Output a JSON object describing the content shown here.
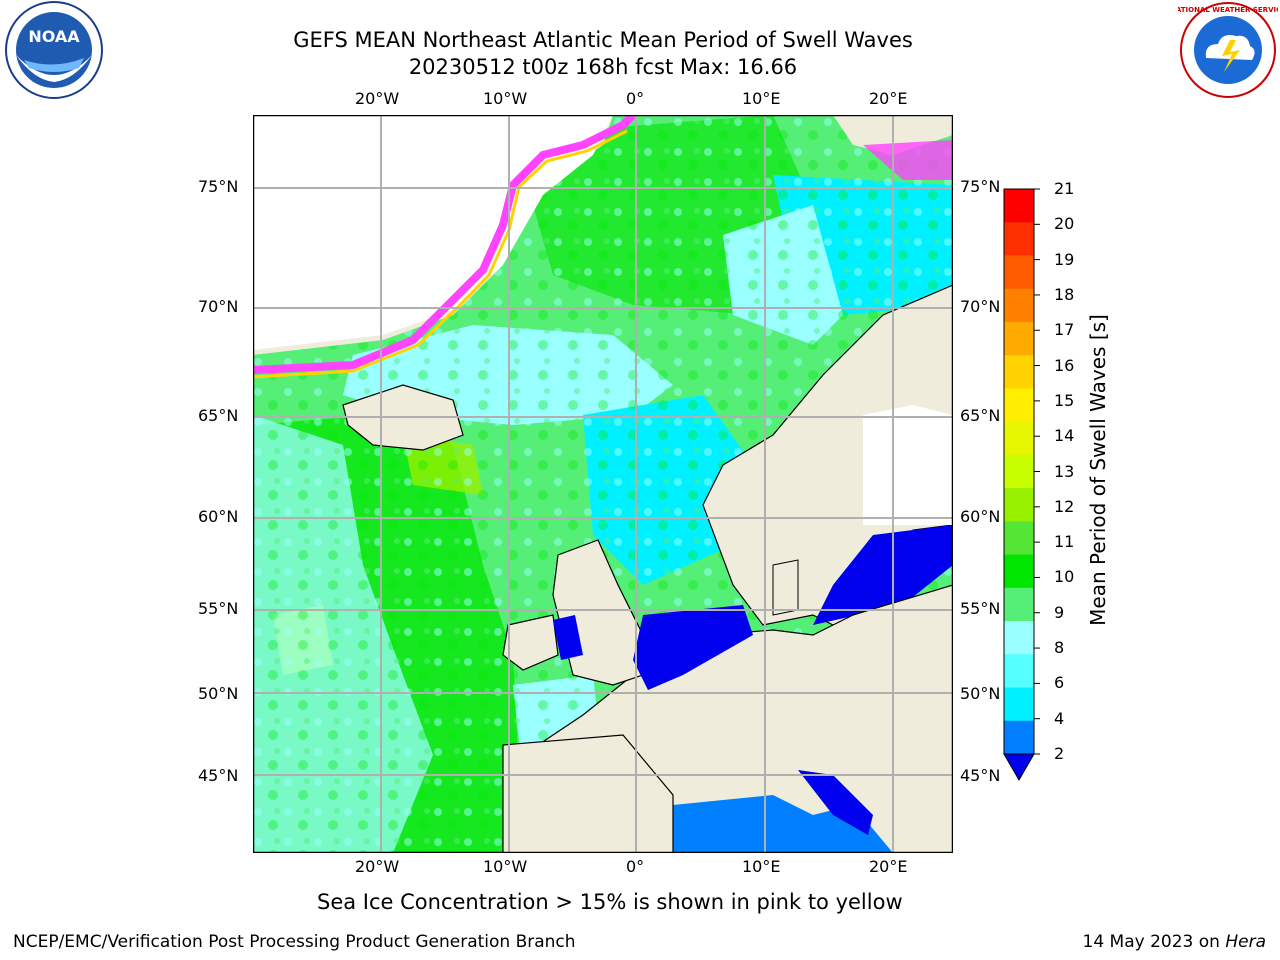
{
  "header": {
    "line1": "GEFS MEAN Northeast Atlantic Mean Period of Swell Waves",
    "line2": "20230512 t00z 168h fcst   Max: 16.66"
  },
  "logos": {
    "left": {
      "name": "noaa-logo",
      "text": "NOAA"
    },
    "right": {
      "name": "national-weather-service-logo",
      "text": "NATIONAL WEATHER SERVICE"
    }
  },
  "map": {
    "lon_labels": [
      "20°W",
      "10°W",
      "0°",
      "10°E",
      "20°E"
    ],
    "lat_labels_left": [
      "75°N",
      "70°N",
      "65°N",
      "60°N",
      "55°N",
      "50°N",
      "45°N"
    ],
    "lat_labels_right": [
      "75°N",
      "70°N",
      "65°N",
      "60°N",
      "55°N",
      "50°N",
      "45°N"
    ],
    "colors": {
      "land": "#efecdc",
      "ocean_swell_low": "#00f0ff",
      "ocean_swell_mid": "#99ffff",
      "ocean_swell_high": "#00e600",
      "ice": "#ff44ff",
      "grid": "#b0b0b0"
    }
  },
  "colorbar": {
    "title": "Mean Period of Swell Waves [s]",
    "ticks": [
      "21",
      "20",
      "19",
      "18",
      "17",
      "16",
      "15",
      "14",
      "13",
      "12",
      "11",
      "10",
      "9",
      "8",
      "6",
      "4",
      "2"
    ],
    "colors": [
      "#ff0000",
      "#ff3000",
      "#ff5a00",
      "#ff8000",
      "#ffaa00",
      "#ffd200",
      "#ffee00",
      "#e6f500",
      "#c8ff00",
      "#96f000",
      "#55e635",
      "#00e600",
      "#55ee77",
      "#99ffff",
      "#55ffff",
      "#00f0ff",
      "#0080ff",
      "#0000ee"
    ]
  },
  "footer": {
    "note": "Sea Ice Concentration > 15% is shown in pink to yellow",
    "credit": "NCEP/EMC/Verification Post Processing Product Generation Branch",
    "date": "14 May 2023 on ",
    "host": "Hera"
  }
}
